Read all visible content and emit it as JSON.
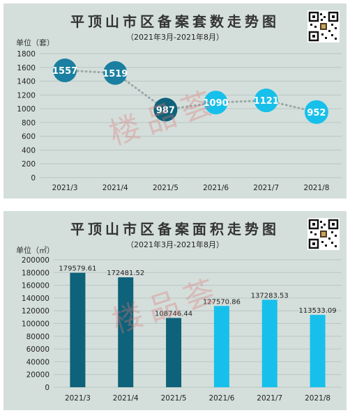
{
  "watermark": "楼品荟",
  "colors": {
    "dark": "#0e6279",
    "teal": "#1a7fa0",
    "light": "#17c0ea",
    "dots": "#9aa7a5",
    "panel": "#d4dfdc"
  },
  "chart_data": [
    {
      "type": "line",
      "title": "平顶山市区备案套数走势图",
      "subtitle": "（2021年3月-2021年8月）",
      "ylabel": "单位（套）",
      "ylim": [
        0,
        1800
      ],
      "yticks": [
        "0",
        "200",
        "400",
        "600",
        "800",
        "1000",
        "1200",
        "1400",
        "1600",
        "1800"
      ],
      "categories": [
        "2021/3",
        "2021/4",
        "2021/5",
        "2021/6",
        "2021/7",
        "2021/8"
      ],
      "series": [
        {
          "values": [
            1557,
            1519,
            987,
            1090,
            1121,
            952
          ]
        }
      ],
      "data_labels": [
        "1557",
        "1519",
        "987",
        "1090",
        "1121",
        "952"
      ],
      "marker_colors": [
        "#1a7fa0",
        "#1a7fa0",
        "#0e6279",
        "#17c0ea",
        "#17c0ea",
        "#17c0ea"
      ],
      "grid": true
    },
    {
      "type": "bar",
      "title": "平顶山市区备案面积走势图",
      "subtitle": "（2021年3月-2021年8月）",
      "ylabel": "单位（㎡）",
      "ylim": [
        0,
        200000
      ],
      "yticks": [
        "0",
        "20000",
        "40000",
        "60000",
        "80000",
        "100000",
        "120000",
        "140000",
        "160000",
        "180000",
        "200000"
      ],
      "categories": [
        "2021/3",
        "2021/4",
        "2021/5",
        "2021/6",
        "2021/7",
        "2021/8"
      ],
      "series": [
        {
          "values": [
            179579.61,
            172481.52,
            108746.44,
            127570.86,
            137283.53,
            113533.09
          ]
        }
      ],
      "data_labels": [
        "179579.61",
        "172481.52",
        "108746.44",
        "127570.86",
        "137283.53",
        "113533.09"
      ],
      "bar_colors": [
        "#0e6279",
        "#0e6279",
        "#0e6279",
        "#17c0ea",
        "#17c0ea",
        "#17c0ea"
      ],
      "grid": true
    }
  ]
}
